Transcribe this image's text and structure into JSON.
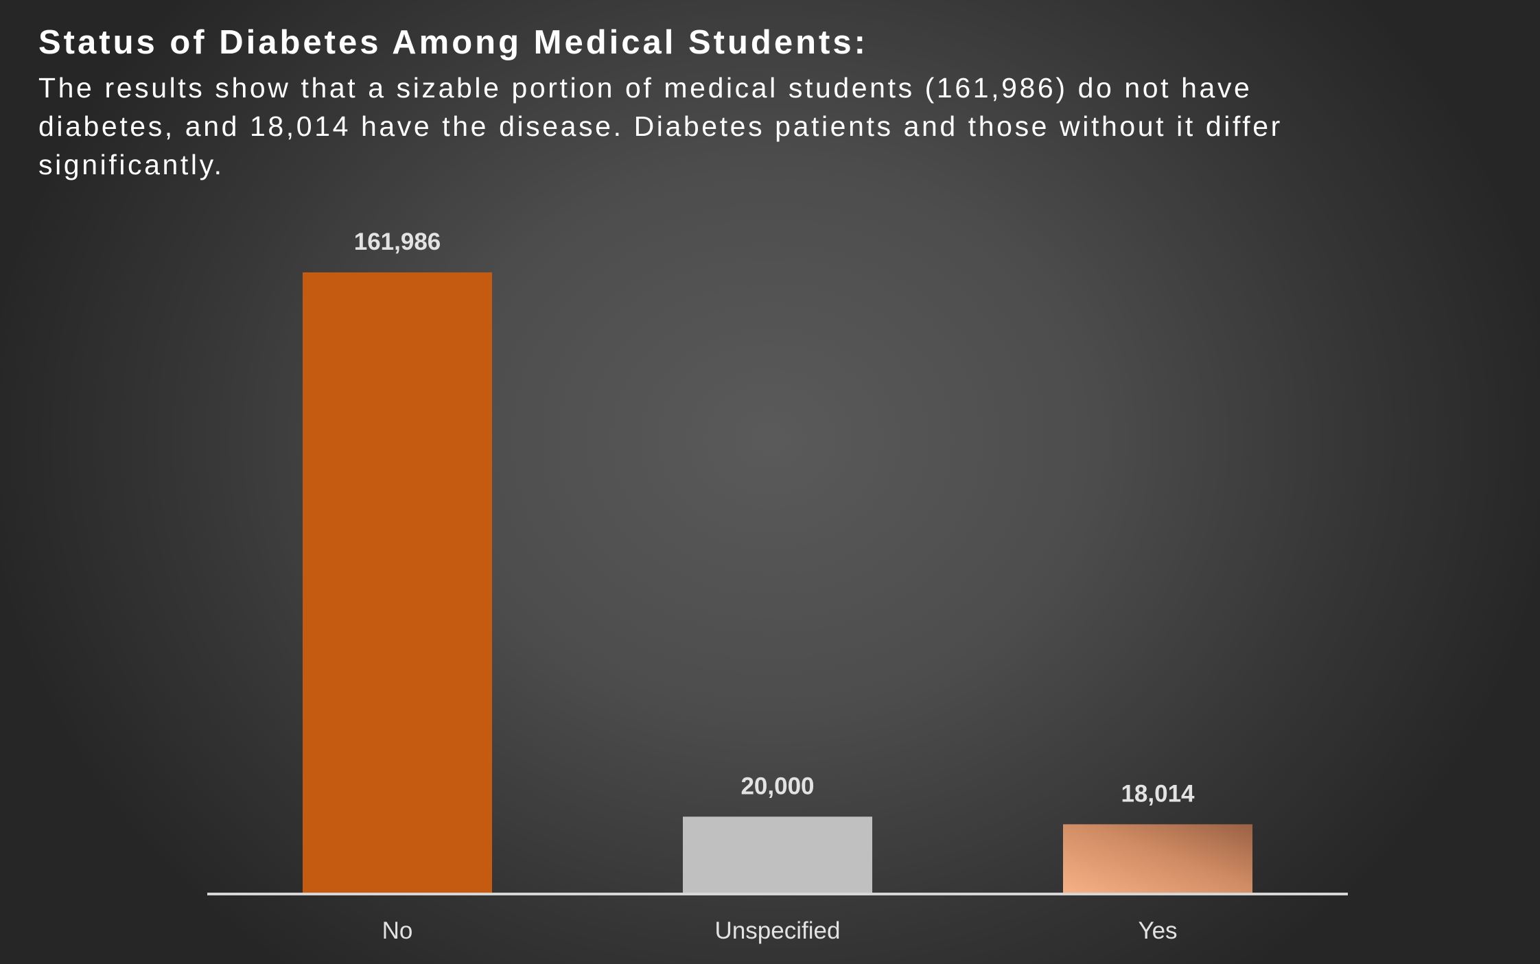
{
  "chart_data": {
    "type": "bar",
    "title": "Status of Diabetes Among Medical Students:",
    "subtitle": "The results show that a sizable portion of medical students (161,986) do not have diabetes, and 18,014 have the disease. Diabetes patients and those without it differ significantly.",
    "categories": [
      "No",
      "Unspecified",
      "Yes"
    ],
    "values": [
      161986,
      20000,
      18014
    ],
    "data_labels": [
      "161,986",
      "20,000",
      "18,014"
    ],
    "colors": [
      "#c55a11",
      "#c0c0c0",
      "#f4b183"
    ],
    "xlabel": "",
    "ylabel": "",
    "ylim": [
      0,
      161986
    ],
    "grid": false,
    "legend": "none"
  }
}
